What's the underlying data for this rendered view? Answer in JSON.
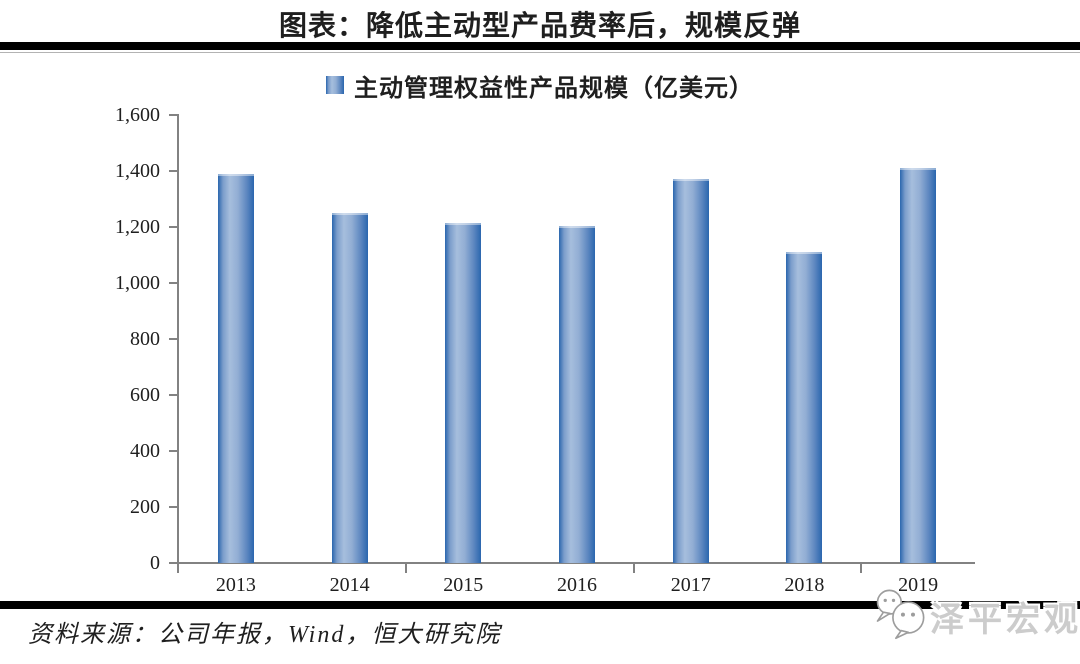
{
  "header": {
    "title": "图表：降低主动型产品费率后，规模反弹"
  },
  "chart_data": {
    "type": "bar",
    "title": "图表：降低主动型产品费率后，规模反弹",
    "legend": [
      {
        "label": "主动管理权益性产品规模（亿美元）",
        "swatch": "gradient-blue-square"
      }
    ],
    "legend_position": "top-center",
    "categories": [
      "2013",
      "2014",
      "2015",
      "2016",
      "2017",
      "2018",
      "2019"
    ],
    "values": [
      1390,
      1250,
      1215,
      1205,
      1370,
      1110,
      1410
    ],
    "xlabel": "",
    "ylabel": "",
    "unit": "亿美元",
    "ylim": [
      0,
      1600
    ],
    "ytick_step": 200,
    "ytick_labels": [
      "0",
      "200",
      "400",
      "600",
      "800",
      "1,000",
      "1,200",
      "1,400",
      "1,600"
    ],
    "grid": false
  },
  "footer": {
    "source": "资料来源：公司年报，Wind，恒大研究院",
    "watermark": "泽平宏观",
    "watermark_icon": "wechat-icon"
  },
  "colors": {
    "bar_edge": "#2a66ae",
    "bar_light": "#a6bedd",
    "axis": "#828282",
    "divider": "#000000",
    "text": "#1f1f1f",
    "watermark": "#cccccc"
  }
}
